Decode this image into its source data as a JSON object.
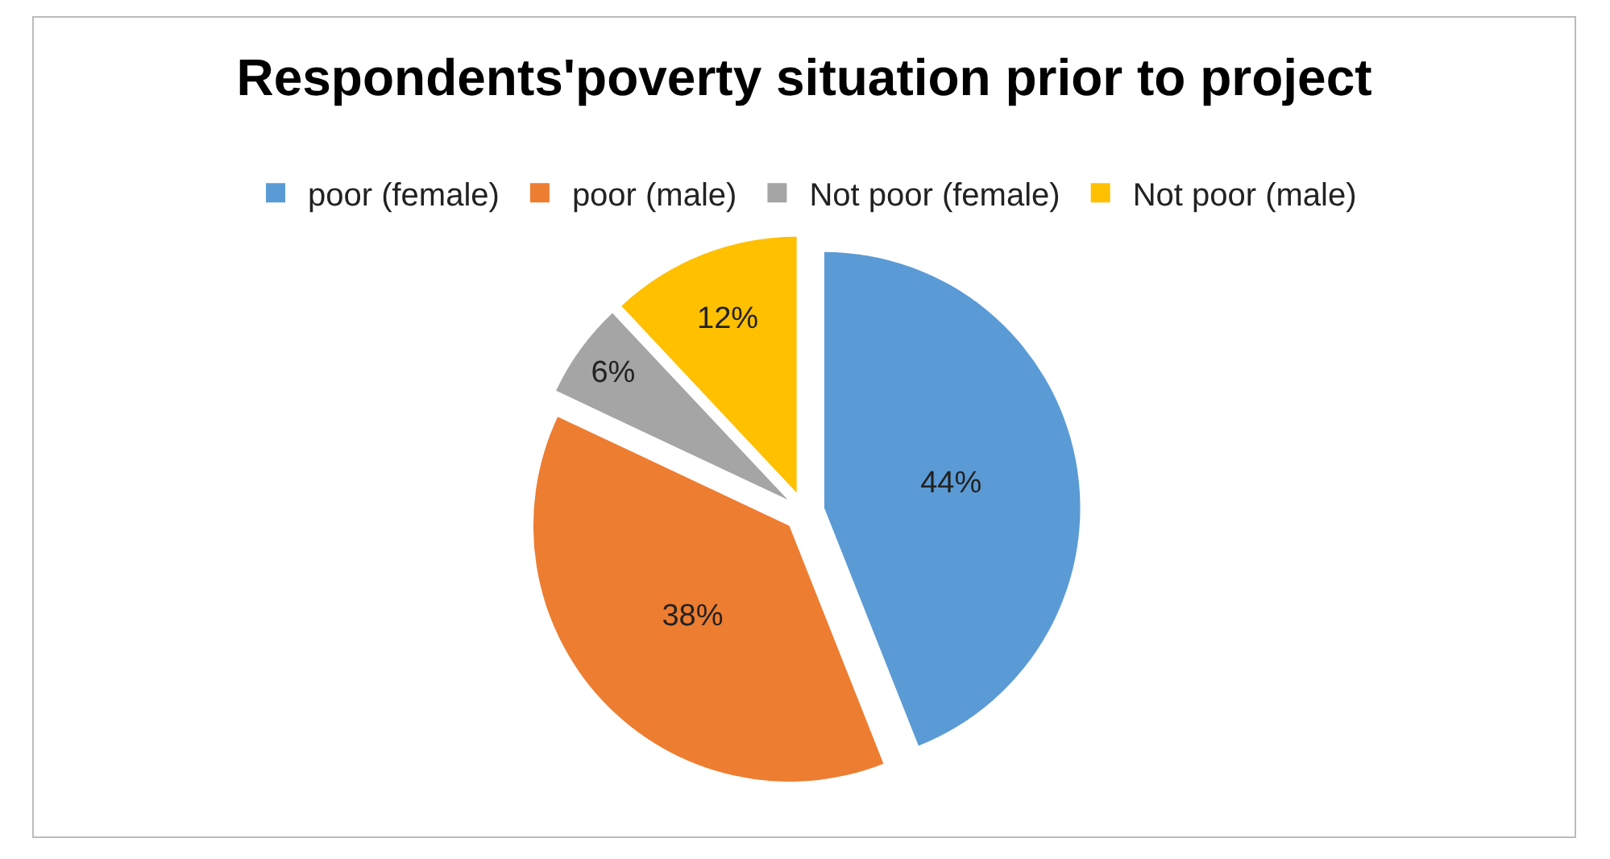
{
  "chart_data": {
    "type": "pie",
    "title": "Respondents'poverty situation prior to project",
    "categories": [
      "poor (female)",
      "poor (male)",
      "Not poor (female)",
      "Not poor (male)"
    ],
    "values": [
      44,
      38,
      6,
      12
    ],
    "value_labels": [
      "44%",
      "38%",
      "6%",
      "12%"
    ],
    "colors": [
      "#5b9bd5",
      "#ed7d31",
      "#a5a5a5",
      "#ffc000"
    ],
    "legend": "top"
  }
}
